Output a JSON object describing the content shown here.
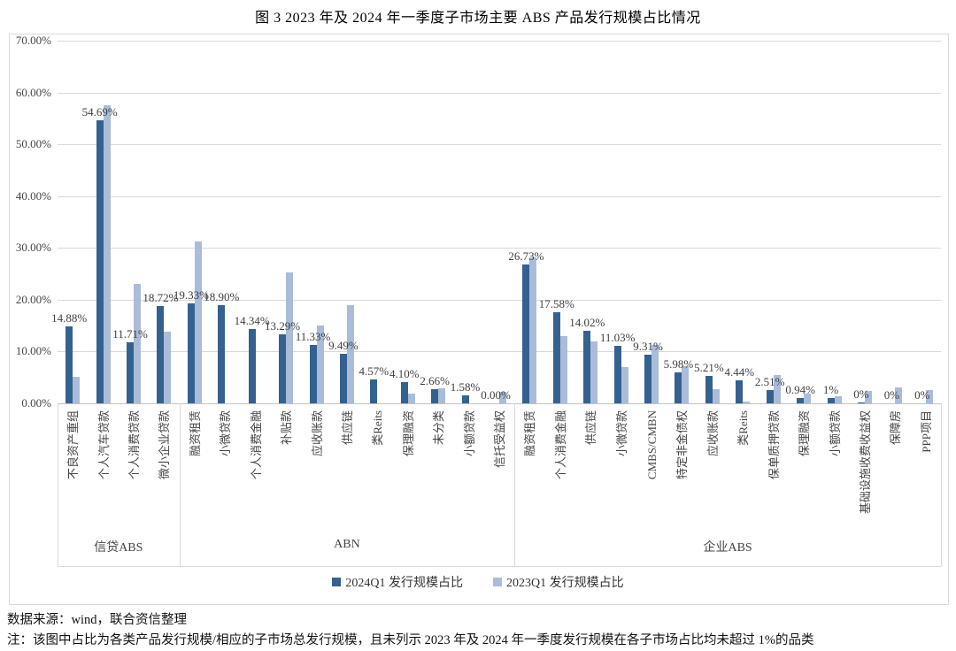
{
  "title": "图 3  2023 年及 2024 年一季度子市场主要 ABS 产品发行规模占比情况",
  "footer": {
    "source": "数据来源：wind，联合资信整理",
    "note": "注：该图中占比为各类产品发行规模/相应的子市场总发行规模，且未列示 2023 年及 2024 年一季度发行规模在各子市场占比均未超过 1%的品类"
  },
  "colors": {
    "series_2024": "#35618f",
    "series_2023": "#aabcd9",
    "gridline": "#d9d9d9",
    "text": "#444444"
  },
  "chart_data": {
    "type": "bar",
    "title": "图 3  2023 年及 2024 年一季度子市场主要 ABS 产品发行规模占比情况",
    "ylim": [
      0,
      70
    ],
    "ystep": 10,
    "ytick_labels": [
      "0.00%",
      "10.00%",
      "20.00%",
      "30.00%",
      "40.00%",
      "50.00%",
      "60.00%",
      "70.00%"
    ],
    "grid": true,
    "legend_position": "bottom",
    "series_meta": [
      {
        "name": "2024Q1 发行规模占比",
        "color": "#35618f",
        "key": "v2024"
      },
      {
        "name": "2023Q1 发行规模占比",
        "color": "#aabcd9",
        "key": "v2023"
      }
    ],
    "groups": [
      {
        "name": "信贷ABS",
        "categories": [
          {
            "label": "不良资产重组",
            "v2024": 14.88,
            "label2024": "14.88%",
            "v2023": 5.2
          },
          {
            "label": "个人汽车贷款",
            "v2024": 54.69,
            "label2024": "54.69%",
            "v2023": 57.6
          },
          {
            "label": "个人消费贷款",
            "v2024": 11.71,
            "label2024": "11.71%",
            "v2023": 23.0
          },
          {
            "label": "微小企业贷款",
            "v2024": 18.72,
            "label2024": "18.72%",
            "v2023": 13.9
          }
        ]
      },
      {
        "name": "ABN",
        "categories": [
          {
            "label": "融资租赁",
            "v2024": 19.33,
            "label2024": "19.33%",
            "v2023": 31.2
          },
          {
            "label": "小微贷款",
            "v2024": 18.9,
            "label2024": "18.90%",
            "v2023": 0
          },
          {
            "label": "个人消费金融",
            "v2024": 14.34,
            "label2024": "14.34%",
            "v2023": 0
          },
          {
            "label": "补贴款",
            "v2024": 13.29,
            "label2024": "13.29%",
            "v2023": 25.3
          },
          {
            "label": "应收账款",
            "v2024": 11.33,
            "label2024": "11.33%",
            "v2023": 15.0
          },
          {
            "label": "供应链",
            "v2024": 9.49,
            "label2024": "9.49%",
            "v2023": 18.9
          },
          {
            "label": "类Reits",
            "v2024": 4.57,
            "label2024": "4.57%",
            "v2023": 0
          },
          {
            "label": "保理融资",
            "v2024": 4.1,
            "label2024": "4.10%",
            "v2023": 1.9
          },
          {
            "label": "未分类",
            "v2024": 2.66,
            "label2024": "2.66%",
            "v2023": 2.9
          },
          {
            "label": "小额贷款",
            "v2024": 1.58,
            "label2024": "1.58%",
            "v2023": 0
          },
          {
            "label": "信托受益权",
            "v2024": 0,
            "label2024": "0.00%",
            "v2023": 2.2
          }
        ]
      },
      {
        "name": "企业ABS",
        "categories": [
          {
            "label": "融资租赁",
            "v2024": 26.73,
            "label2024": "26.73%",
            "v2023": 28.2
          },
          {
            "label": "个人消费金融",
            "v2024": 17.58,
            "label2024": "17.58%",
            "v2023": 13.0
          },
          {
            "label": "供应链",
            "v2024": 14.02,
            "label2024": "14.02%",
            "v2023": 12.0
          },
          {
            "label": "小微贷款",
            "v2024": 11.03,
            "label2024": "11.03%",
            "v2023": 7.0
          },
          {
            "label": "CMBS/CMBN",
            "v2024": 9.31,
            "label2024": "9.31%",
            "v2023": 11.2
          },
          {
            "label": "特定非金债权",
            "v2024": 5.98,
            "label2024": "5.98%",
            "v2023": 7.2
          },
          {
            "label": "应收账款",
            "v2024": 5.21,
            "label2024": "5.21%",
            "v2023": 2.8
          },
          {
            "label": "类Reits",
            "v2024": 4.44,
            "label2024": "4.44%",
            "v2023": 0.3
          },
          {
            "label": "保单质押贷款",
            "v2024": 2.51,
            "label2024": "2.51%",
            "v2023": 5.4
          },
          {
            "label": "保理融资",
            "v2024": 0.94,
            "label2024": "0.94%",
            "v2023": 1.9
          },
          {
            "label": "小额贷款",
            "v2024": 1.0,
            "label2024": "1%",
            "v2023": 1.3
          },
          {
            "label": "基础设施收费收益权",
            "v2024": 0.1,
            "label2024": "0%",
            "v2023": 2.4
          },
          {
            "label": "保障房",
            "v2024": 0,
            "label2024": "0%",
            "v2023": 3.0
          },
          {
            "label": "PPP项目",
            "v2024": 0,
            "label2024": "0%",
            "v2023": 2.5
          }
        ]
      }
    ]
  }
}
